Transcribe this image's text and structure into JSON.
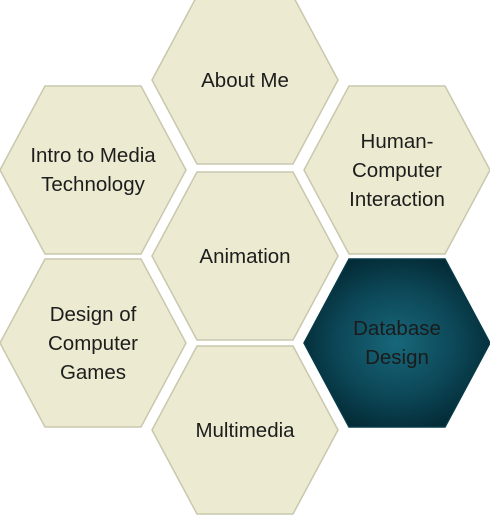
{
  "hex_menu": {
    "items": [
      {
        "id": "about",
        "label": "About Me",
        "active": false
      },
      {
        "id": "intro",
        "label": "Intro to Media\nTechnology",
        "active": false
      },
      {
        "id": "hci",
        "label": "Human-\nComputer\nInteraction",
        "active": false
      },
      {
        "id": "animation",
        "label": "Animation",
        "active": false
      },
      {
        "id": "games",
        "label": "Design of\nComputer\nGames",
        "active": false
      },
      {
        "id": "database",
        "label": "Database\nDesign",
        "active": true
      },
      {
        "id": "multimedia",
        "label": "Multimedia",
        "active": false
      }
    ]
  },
  "colors": {
    "tile_fill": "#ecebd1",
    "tile_border": "#c9c7ad",
    "active_center": "#17677a",
    "active_edge": "#032a34",
    "text": "#1d1d1d"
  }
}
